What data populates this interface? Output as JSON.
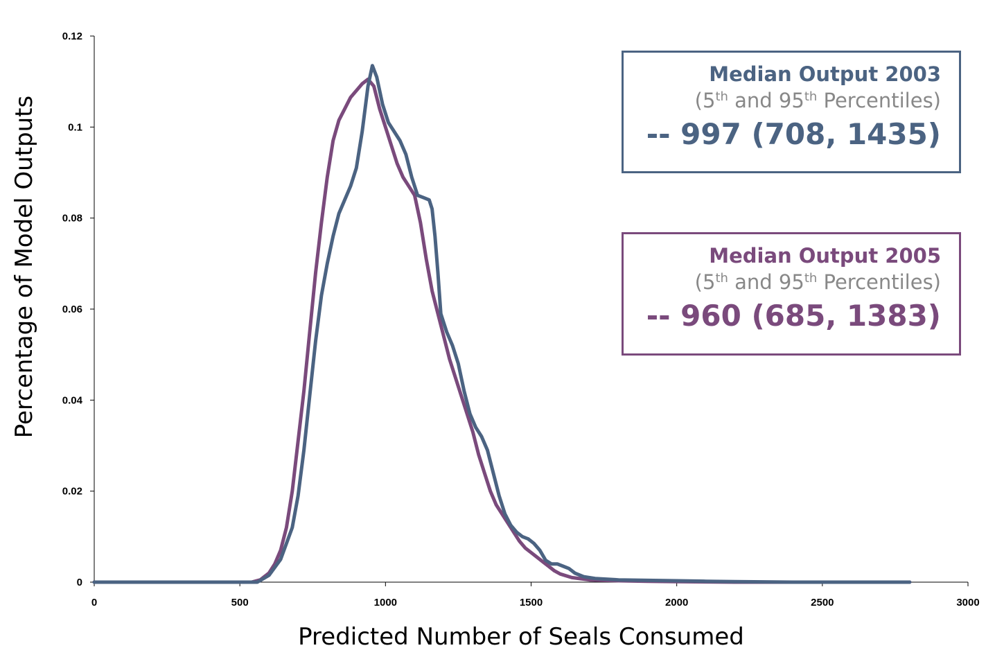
{
  "chart_data": {
    "type": "line",
    "xlabel": "Predicted Number of Seals Consumed",
    "ylabel": "Percentage of Model Outputs",
    "xlim": [
      0,
      3000
    ],
    "ylim": [
      0,
      0.12
    ],
    "x_ticks": [
      "0",
      "500",
      "1000",
      "1500",
      "2000",
      "2500",
      "3000"
    ],
    "y_ticks": [
      "0",
      "0.02",
      "0.04",
      "0.06",
      "0.08",
      "0.1",
      "0.12"
    ],
    "grid": false,
    "series": [
      {
        "name": "Median Output 2003",
        "color": "#4b6382",
        "x": [
          0,
          500,
          560,
          600,
          640,
          680,
          700,
          720,
          740,
          760,
          780,
          800,
          820,
          840,
          860,
          880,
          900,
          920,
          940,
          955,
          970,
          990,
          1010,
          1030,
          1050,
          1070,
          1090,
          1110,
          1130,
          1150,
          1160,
          1170,
          1180,
          1190,
          1210,
          1230,
          1250,
          1270,
          1290,
          1310,
          1330,
          1350,
          1370,
          1390,
          1410,
          1430,
          1450,
          1470,
          1490,
          1510,
          1530,
          1550,
          1570,
          1590,
          1610,
          1630,
          1650,
          1680,
          1720,
          1800,
          1900,
          2000,
          2100,
          2200,
          2400,
          2600,
          2800
        ],
        "values": [
          0,
          0,
          0,
          0.0015,
          0.005,
          0.012,
          0.019,
          0.029,
          0.041,
          0.053,
          0.063,
          0.07,
          0.076,
          0.081,
          0.084,
          0.087,
          0.091,
          0.099,
          0.109,
          0.1135,
          0.111,
          0.105,
          0.101,
          0.099,
          0.097,
          0.094,
          0.089,
          0.085,
          0.0845,
          0.084,
          0.082,
          0.076,
          0.068,
          0.059,
          0.055,
          0.052,
          0.048,
          0.042,
          0.037,
          0.034,
          0.032,
          0.029,
          0.024,
          0.019,
          0.015,
          0.0125,
          0.011,
          0.01,
          0.0095,
          0.0085,
          0.007,
          0.0048,
          0.004,
          0.004,
          0.0035,
          0.003,
          0.002,
          0.0012,
          0.0008,
          0.0005,
          0.0004,
          0.0003,
          0.0002,
          0.0001,
          0,
          0,
          0
        ]
      },
      {
        "name": "Median Output 2005",
        "color": "#7a4a7c",
        "x": [
          0,
          500,
          540,
          570,
          600,
          620,
          640,
          660,
          680,
          700,
          720,
          740,
          760,
          780,
          800,
          820,
          840,
          860,
          880,
          900,
          920,
          940,
          960,
          980,
          1000,
          1020,
          1040,
          1060,
          1080,
          1100,
          1120,
          1140,
          1160,
          1180,
          1200,
          1220,
          1240,
          1260,
          1280,
          1300,
          1320,
          1340,
          1360,
          1380,
          1400,
          1420,
          1440,
          1460,
          1480,
          1500,
          1520,
          1540,
          1560,
          1580,
          1600,
          1640,
          1700,
          1800,
          1900,
          2000,
          2200,
          2400,
          2800
        ],
        "values": [
          0,
          0,
          0,
          0.0005,
          0.002,
          0.004,
          0.007,
          0.012,
          0.02,
          0.031,
          0.042,
          0.055,
          0.068,
          0.079,
          0.089,
          0.097,
          0.1015,
          0.104,
          0.1065,
          0.108,
          0.1095,
          0.1105,
          0.109,
          0.104,
          0.1,
          0.096,
          0.092,
          0.089,
          0.087,
          0.085,
          0.079,
          0.071,
          0.064,
          0.059,
          0.054,
          0.049,
          0.045,
          0.041,
          0.037,
          0.033,
          0.028,
          0.024,
          0.02,
          0.017,
          0.015,
          0.013,
          0.011,
          0.009,
          0.0075,
          0.0065,
          0.0055,
          0.0045,
          0.0035,
          0.0025,
          0.0018,
          0.001,
          0.0005,
          0.0003,
          0.0002,
          0.0001,
          0,
          0,
          0
        ]
      }
    ],
    "legend_boxes": [
      {
        "title": "Median Output 2003",
        "sub_open": "(5",
        "sup1": "th",
        "sub_mid": " and 95",
        "sup2": "th",
        "sub_close": " Percentiles)",
        "value": "-- 997 (708, 1435)",
        "color": "#4b6382"
      },
      {
        "title": "Median Output 2005",
        "sub_open": "(5",
        "sup1": "th",
        "sub_mid": " and 95",
        "sup2": "th",
        "sub_close": " Percentiles)",
        "value": "-- 960 (685, 1383)",
        "color": "#7a4a7c"
      }
    ]
  }
}
